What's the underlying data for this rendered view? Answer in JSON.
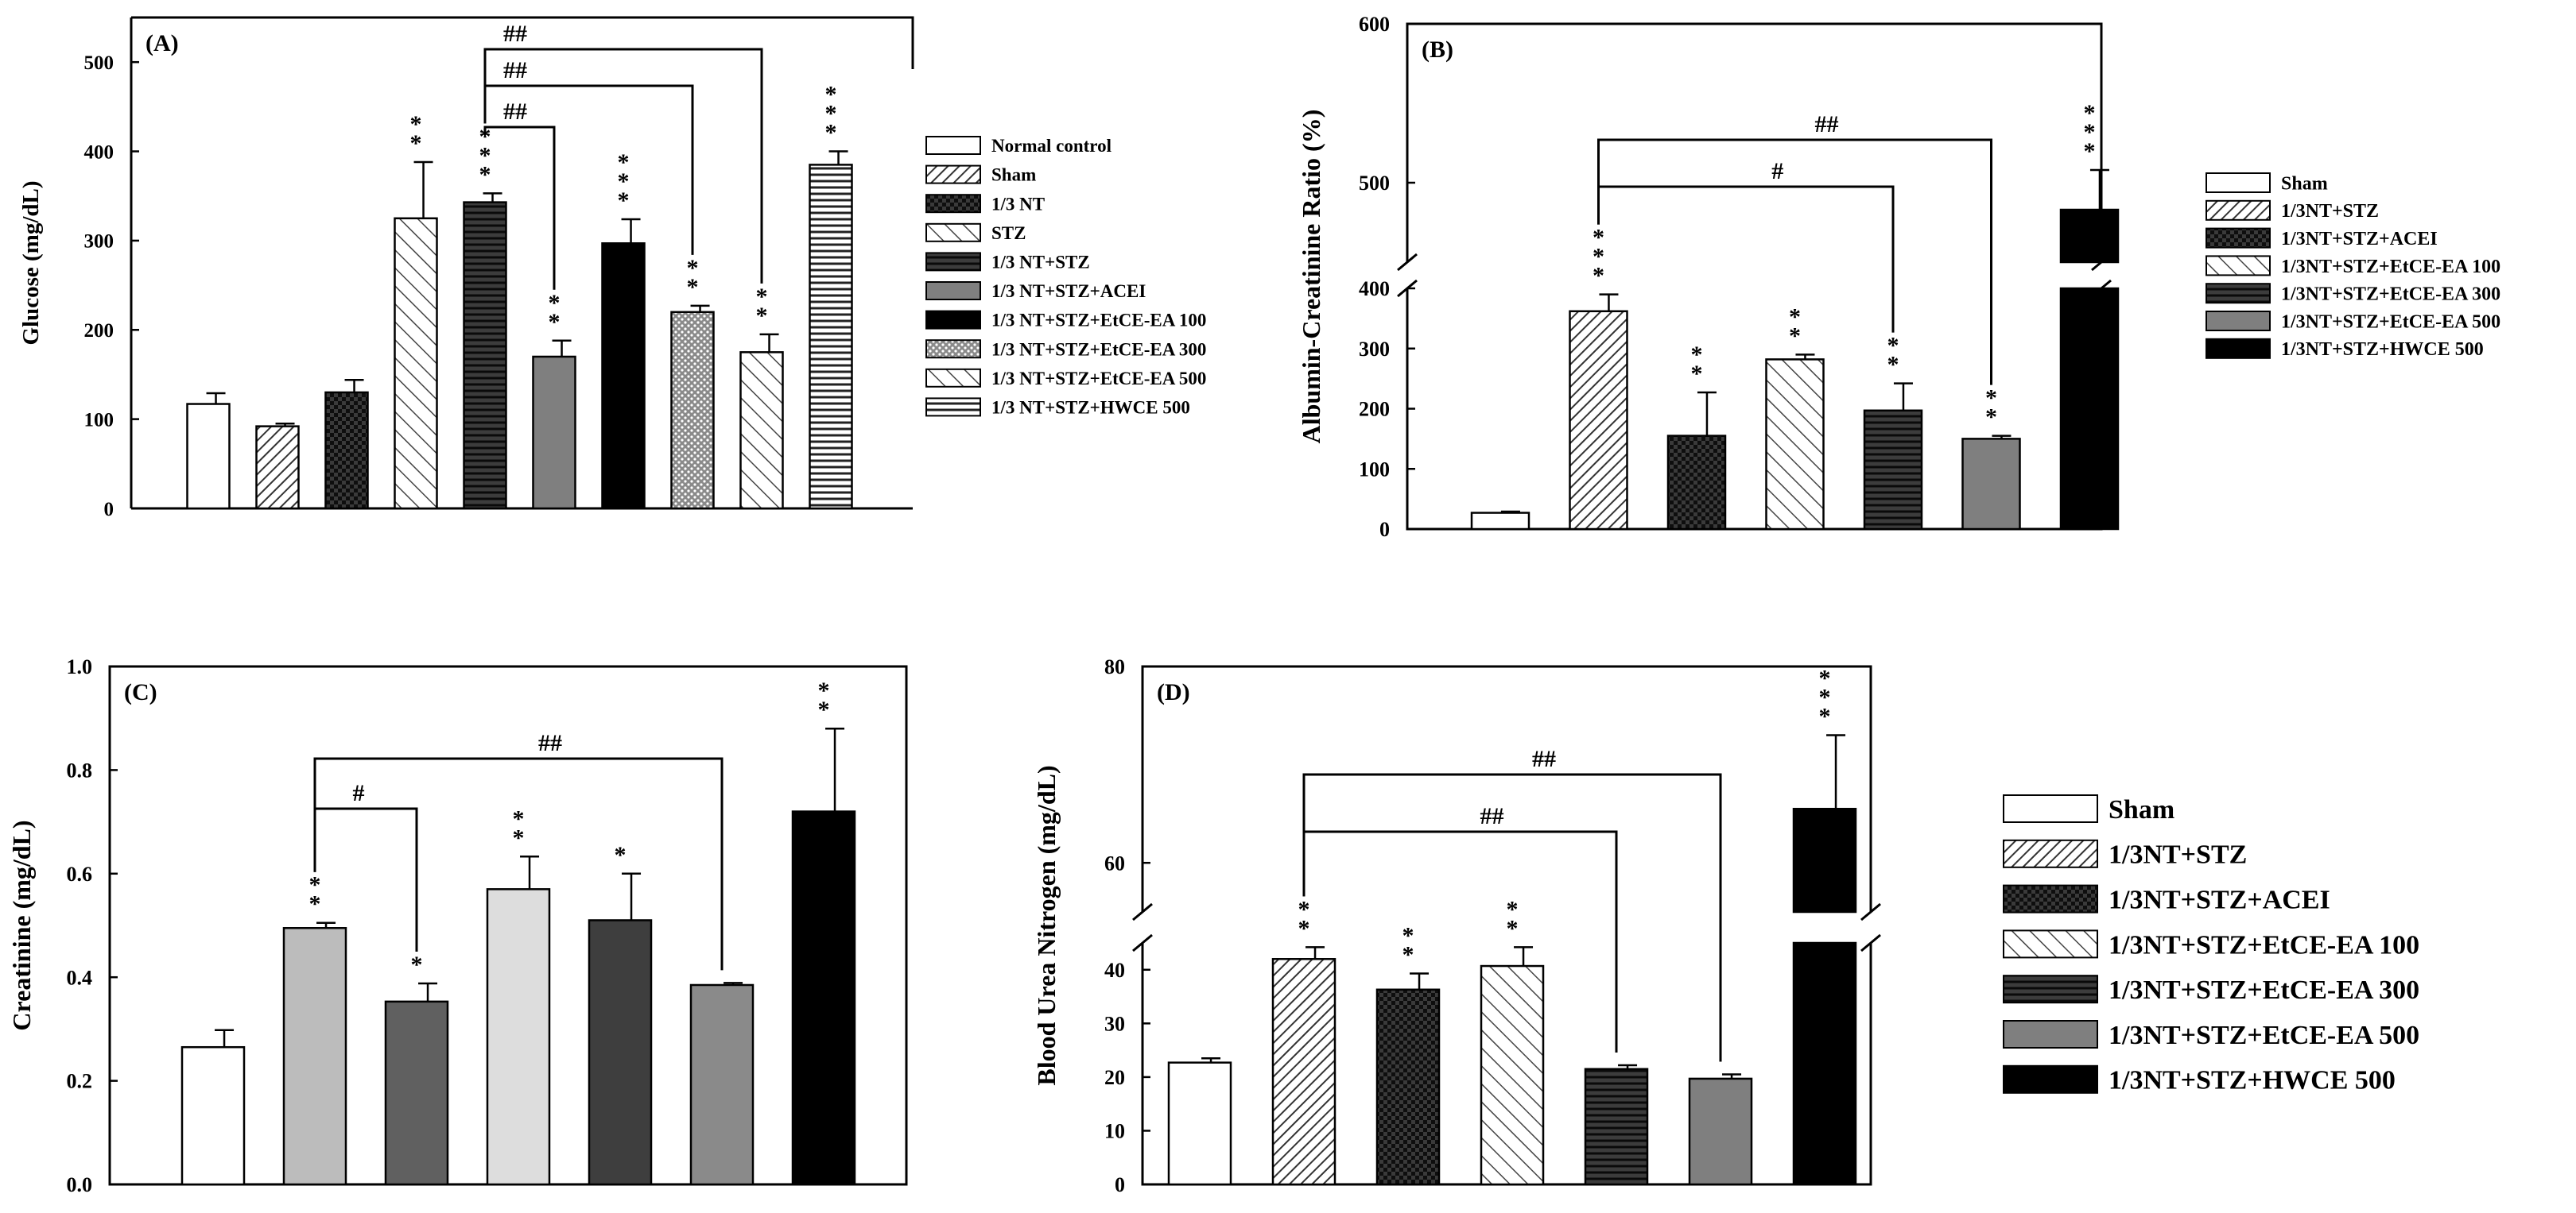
{
  "chart_data": [
    {
      "panel": "(A)",
      "type": "bar",
      "ylabel": "Glucose (mg/dL)",
      "ylim": [
        0,
        550
      ],
      "yticks": [
        "0",
        "100",
        "200",
        "300",
        "400",
        "500"
      ],
      "legend_position": "right",
      "categories": [
        "Normal control",
        "Sham",
        "1/3 NT",
        "STZ",
        "1/3 NT+STZ",
        "1/3 NT+STZ+ACEI",
        "1/3 NT+STZ+EtCE-EA 100",
        "1/3 NT+STZ+EtCE-EA 300",
        "1/3 NT+STZ+EtCE-EA 500",
        "1/3 NT+STZ+HWCE 500"
      ],
      "values": [
        117,
        92,
        130,
        325,
        343,
        170,
        297,
        220,
        175,
        385
      ],
      "errors": [
        12,
        3,
        14,
        63,
        10,
        18,
        27,
        7,
        20,
        15
      ],
      "stars": [
        "",
        "",
        "",
        "**",
        "***",
        "**",
        "***",
        "**",
        "**",
        "***"
      ],
      "sig": [
        {
          "from": 4,
          "to": 5,
          "label": "##"
        },
        {
          "from": 4,
          "to": 7,
          "label": "##"
        },
        {
          "from": 4,
          "to": 8,
          "label": "##"
        }
      ]
    },
    {
      "panel": "(B)",
      "type": "bar",
      "ylabel": "Albumin-Creatinine Ratio (%)",
      "yticks": [
        "0",
        "100",
        "200",
        "300",
        "400",
        "500",
        "600"
      ],
      "axis_break": [
        400,
        450
      ],
      "legend_position": "right",
      "categories": [
        "Sham",
        "1/3NT+STZ",
        "1/3NT+STZ+ACEI",
        "1/3NT+STZ+EtCE-EA 100",
        "1/3NT+STZ+EtCE-EA 300",
        "1/3NT+STZ+EtCE-EA 500",
        "1/3NT+STZ+HWCE 500"
      ],
      "values": [
        27,
        362,
        155,
        282,
        197,
        150,
        483
      ],
      "errors": [
        2,
        28,
        72,
        8,
        45,
        5,
        25
      ],
      "stars": [
        "",
        "***",
        "**",
        "**",
        "**",
        "**",
        "***"
      ],
      "sig": [
        {
          "from": 1,
          "to": 4,
          "label": "#"
        },
        {
          "from": 1,
          "to": 5,
          "label": "##"
        }
      ]
    },
    {
      "panel": "(C)",
      "type": "bar",
      "ylabel": "Creatinine (mg/dL)",
      "ylim": [
        0,
        1.0
      ],
      "yticks": [
        "0.0",
        "0.2",
        "0.4",
        "0.6",
        "0.8",
        "1.0"
      ],
      "categories": [
        "Sham",
        "1/3NT+STZ",
        "1/3NT+STZ+ACEI",
        "1/3NT+STZ+EtCE-EA 100",
        "1/3NT+STZ+EtCE-EA 300",
        "1/3NT+STZ+EtCE-EA 500",
        "1/3NT+STZ+HWCE 500"
      ],
      "values": [
        0.265,
        0.495,
        0.353,
        0.57,
        0.51,
        0.385,
        0.72
      ],
      "errors": [
        0.033,
        0.01,
        0.035,
        0.063,
        0.09,
        0.004,
        0.16
      ],
      "stars": [
        "",
        "**",
        "*",
        "**",
        "*",
        "",
        "**"
      ],
      "sig": [
        {
          "from": 1,
          "to": 2,
          "label": "#"
        },
        {
          "from": 1,
          "to": 5,
          "label": "##"
        }
      ]
    },
    {
      "panel": "(D)",
      "type": "bar",
      "ylabel": "Blood Urea Nitrogen (mg/dL)",
      "yticks": [
        "0",
        "10",
        "20",
        "30",
        "40",
        "60",
        "80"
      ],
      "axis_break": [
        45,
        55
      ],
      "legend_position": "right",
      "categories": [
        "Sham",
        "1/3NT+STZ",
        "1/3NT+STZ+ACEI",
        "1/3NT+STZ+EtCE-EA 100",
        "1/3NT+STZ+EtCE-EA 300",
        "1/3NT+STZ+EtCE-EA 500",
        "1/3NT+STZ+HWCE 500"
      ],
      "values": [
        22.7,
        42,
        36.3,
        40.7,
        21.5,
        19.7,
        65.5
      ],
      "errors": [
        0.8,
        2.2,
        3,
        3.5,
        0.7,
        0.8,
        7.5
      ],
      "stars": [
        "",
        "**",
        "**",
        "**",
        "",
        "",
        "***"
      ],
      "sig": [
        {
          "from": 1,
          "to": 4,
          "label": "##"
        },
        {
          "from": 1,
          "to": 5,
          "label": "##"
        }
      ]
    }
  ]
}
